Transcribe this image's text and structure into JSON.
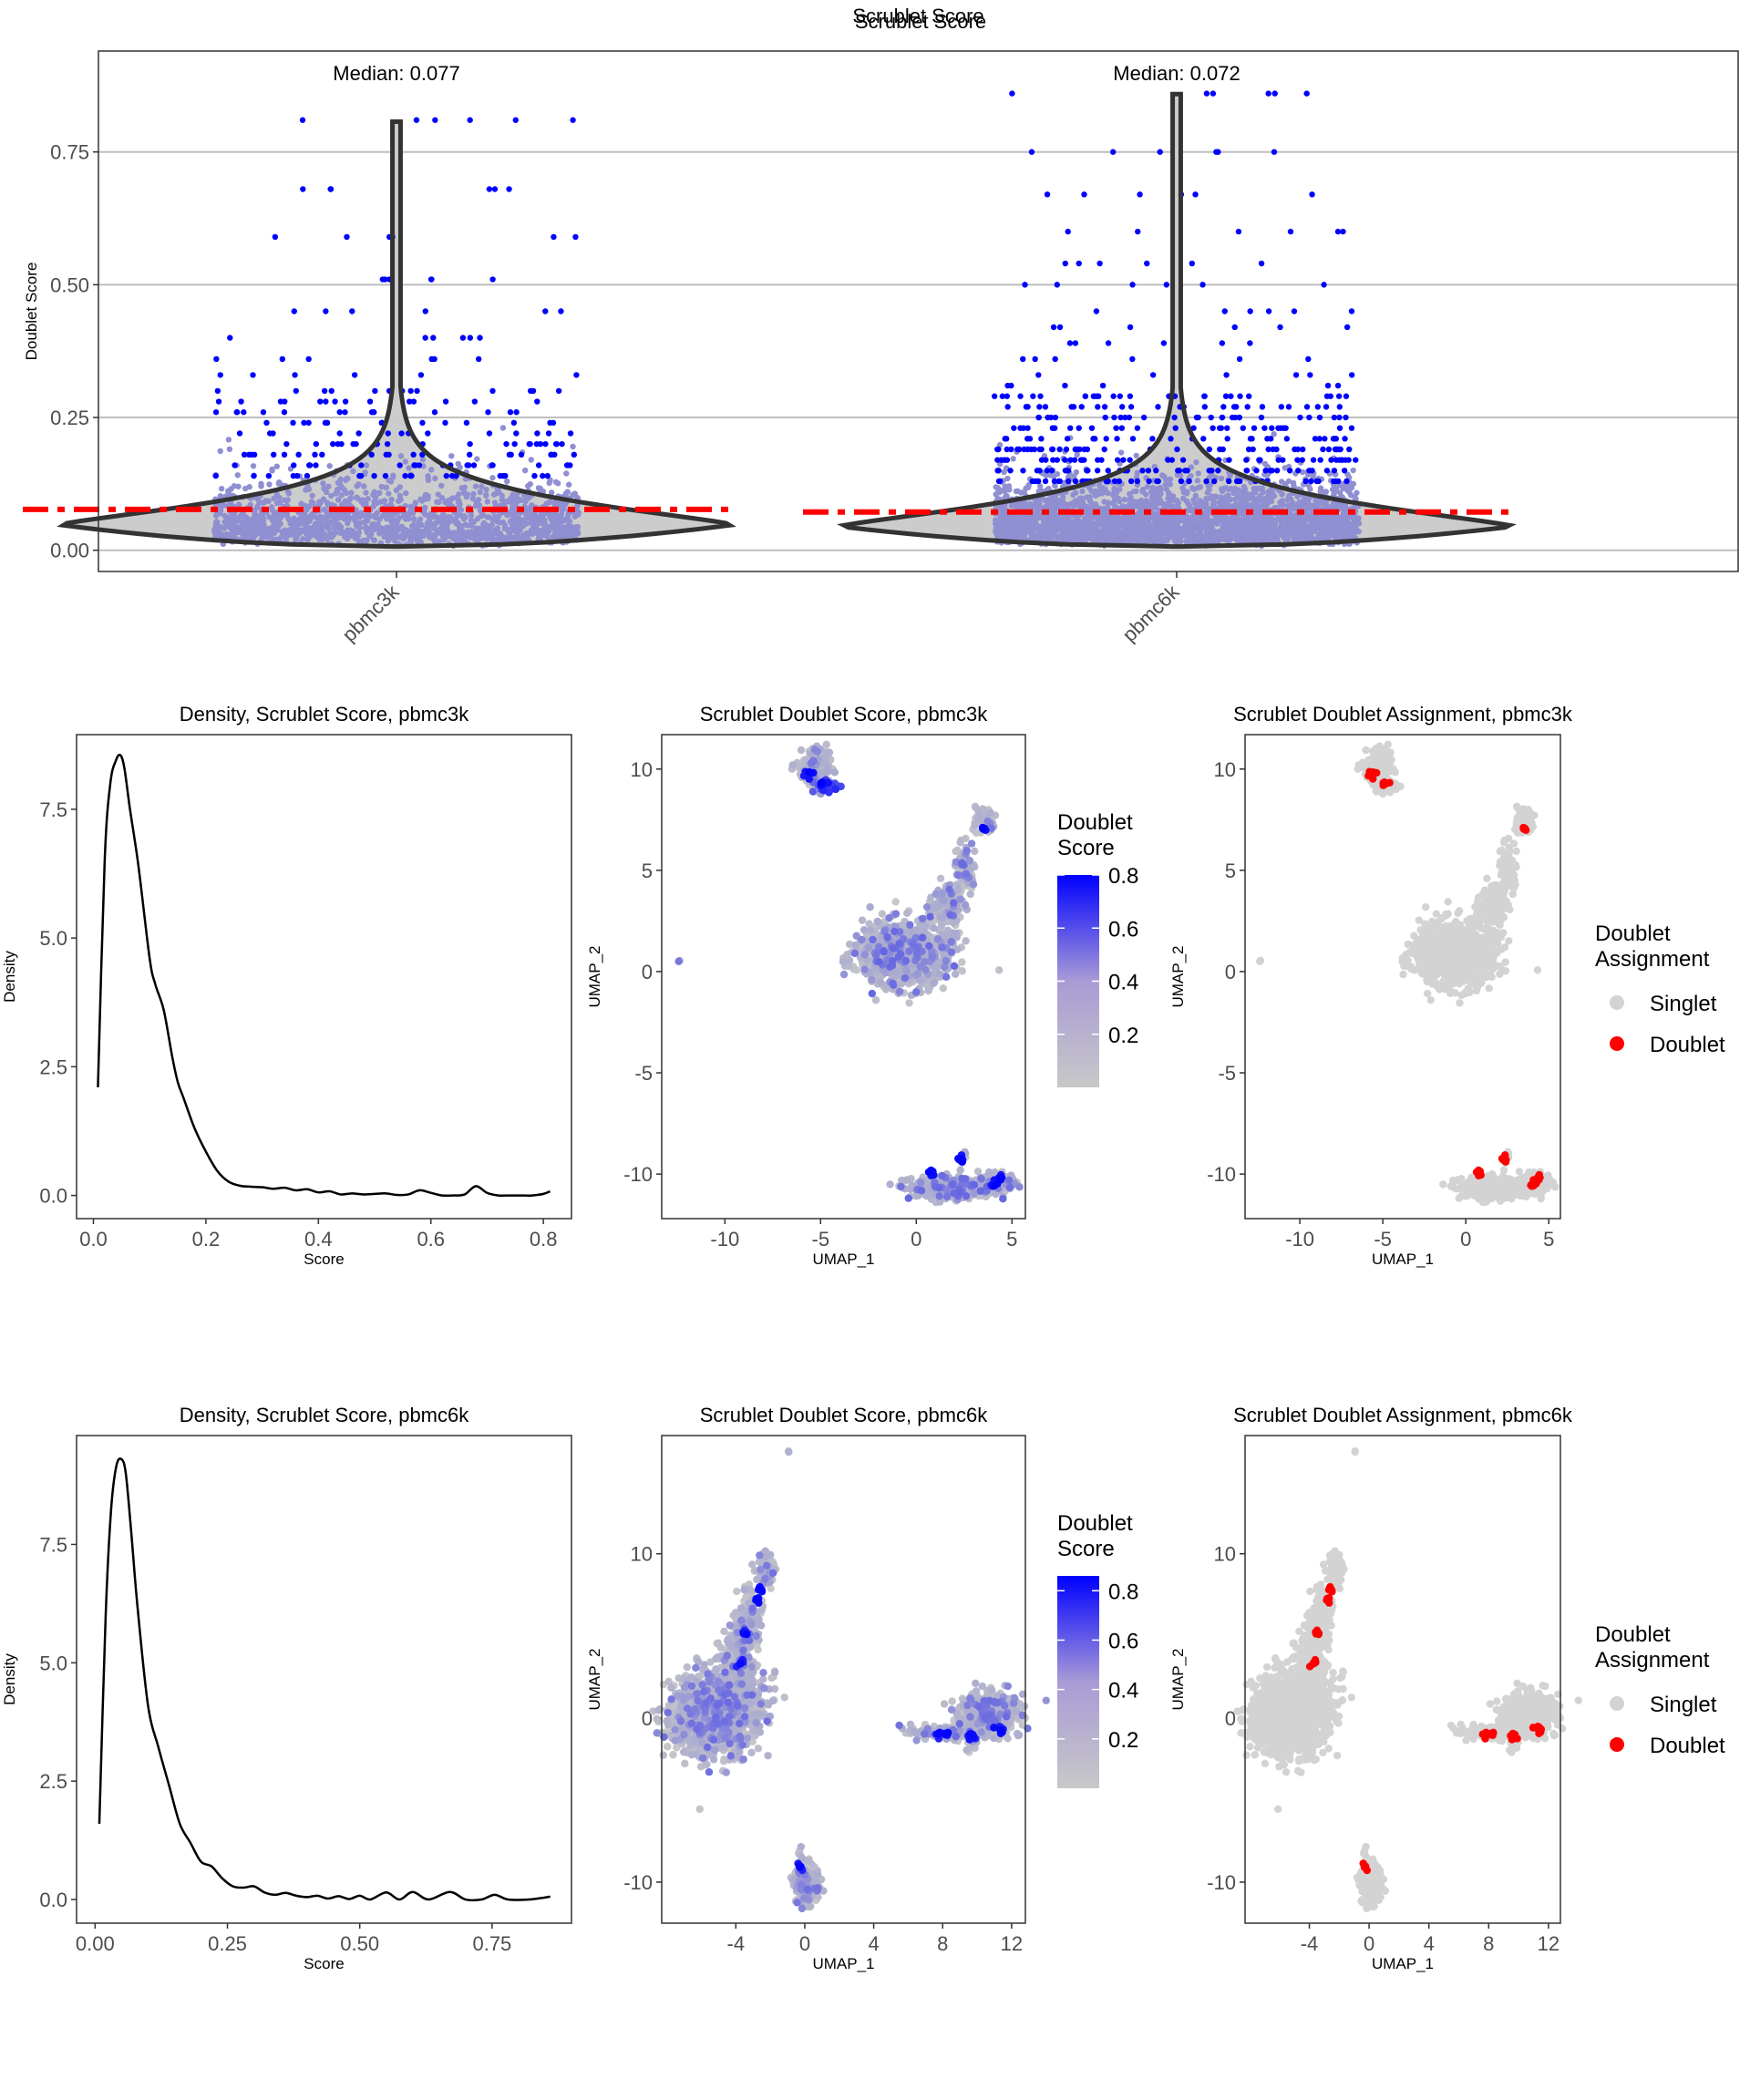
{
  "chart_data": [
    {
      "id": "violin",
      "type": "violin",
      "title": "Scrublet Score",
      "xlabel": "",
      "ylabel": "Doublet Score",
      "ylim": [
        -0.04,
        0.94
      ],
      "yticks": [
        0.0,
        0.25,
        0.5,
        0.75
      ],
      "ytick_labels": [
        "0.00",
        "0.25",
        "0.50",
        "0.75"
      ],
      "categories": [
        "pbmc3k",
        "pbmc6k"
      ],
      "grid": "horizontal",
      "median_line_color": "#FF0000",
      "violin_fill": "#CCCCCC",
      "violin_outline": "#333333",
      "point_color_high": "#0000FF",
      "point_color_low": "#8F8FD1",
      "groups": [
        {
          "name": "pbmc3k",
          "median": 0.077,
          "median_label": "Median: 0.077",
          "max": 0.81,
          "min": 0.007,
          "mode": 0.048,
          "outlier_levels": [
            0.81,
            0.68,
            0.59,
            0.51,
            0.45,
            0.4,
            0.36,
            0.33,
            0.3,
            0.28,
            0.26,
            0.24,
            0.22,
            0.2,
            0.18,
            0.16,
            0.14
          ]
        },
        {
          "name": "pbmc6k",
          "median": 0.072,
          "median_label": "Median: 0.072",
          "max": 0.86,
          "min": 0.007,
          "mode": 0.045,
          "outlier_levels": [
            0.86,
            0.75,
            0.67,
            0.6,
            0.54,
            0.5,
            0.45,
            0.42,
            0.39,
            0.36,
            0.33,
            0.31,
            0.29,
            0.27,
            0.25,
            0.23,
            0.21,
            0.19,
            0.17,
            0.15,
            0.13
          ]
        }
      ]
    },
    {
      "id": "density3k",
      "type": "line",
      "title": "Density, Scrublet Score, pbmc3k",
      "xlabel": "Score",
      "ylabel": "Density",
      "xlim": [
        -0.03,
        0.85
      ],
      "ylim": [
        -0.45,
        8.95
      ],
      "xticks": [
        0.0,
        0.2,
        0.4,
        0.6,
        0.8
      ],
      "xtick_labels": [
        "0.0",
        "0.2",
        "0.4",
        "0.6",
        "0.8"
      ],
      "yticks": [
        0.0,
        2.5,
        5.0,
        7.5
      ],
      "ytick_labels": [
        "0.0",
        "2.5",
        "5.0",
        "7.5"
      ],
      "x": [
        0.008,
        0.02,
        0.03,
        0.04,
        0.048,
        0.055,
        0.065,
        0.08,
        0.1,
        0.11,
        0.125,
        0.14,
        0.15,
        0.16,
        0.18,
        0.2,
        0.22,
        0.24,
        0.26,
        0.28,
        0.3,
        0.32,
        0.34,
        0.36,
        0.38,
        0.4,
        0.42,
        0.44,
        0.46,
        0.48,
        0.5,
        0.52,
        0.54,
        0.56,
        0.58,
        0.6,
        0.62,
        0.64,
        0.66,
        0.68,
        0.7,
        0.72,
        0.74,
        0.76,
        0.78,
        0.8,
        0.812
      ],
      "y": [
        2.1,
        6.5,
        8.0,
        8.45,
        8.55,
        8.3,
        7.5,
        6.4,
        4.6,
        4.1,
        3.6,
        2.7,
        2.2,
        1.9,
        1.3,
        0.85,
        0.48,
        0.27,
        0.19,
        0.17,
        0.16,
        0.13,
        0.15,
        0.1,
        0.12,
        0.06,
        0.08,
        0.02,
        0.04,
        0.02,
        0.03,
        0.04,
        0.01,
        0.02,
        0.1,
        0.05,
        0.0,
        0.0,
        0.02,
        0.18,
        0.05,
        0.0,
        0.0,
        0.0,
        0.0,
        0.03,
        0.08
      ]
    },
    {
      "id": "umap_score3k",
      "type": "scatter",
      "title": "Scrublet Doublet Score, pbmc3k",
      "xlabel": "UMAP_1",
      "ylabel": "UMAP_2",
      "xlim": [
        -13.3,
        5.7
      ],
      "ylim": [
        -12.2,
        11.7
      ],
      "xticks": [
        -10,
        -5,
        0,
        5
      ],
      "xtick_labels": [
        "-10",
        "-5",
        "0",
        "5"
      ],
      "yticks": [
        -10,
        -5,
        0,
        5,
        10
      ],
      "ytick_labels": [
        "-10",
        "-5",
        "0",
        "5",
        "10"
      ],
      "legend": {
        "title": [
          "Doublet",
          "Score"
        ],
        "type": "colorbar",
        "range": [
          0.0,
          0.8
        ],
        "ticks": [
          "0.2",
          "0.4",
          "0.6",
          "0.8"
        ],
        "low_color": "#C8C8C8",
        "high_color": "#0000FF",
        "placement": "right"
      },
      "clusters_approx": [
        {
          "cx": -5.3,
          "cy": 10.1,
          "sx": 0.45,
          "sy": 0.45,
          "n": 160
        },
        {
          "cx": -4.6,
          "cy": 9.1,
          "sx": 0.3,
          "sy": 0.2,
          "n": 25,
          "score": 0.6
        },
        {
          "cx": -0.6,
          "cy": 0.8,
          "sx": 1.15,
          "sy": 0.8,
          "n": 900
        },
        {
          "cx": 1.5,
          "cy": 3.2,
          "sx": 0.4,
          "sy": 0.5,
          "n": 120
        },
        {
          "cx": 2.6,
          "cy": 5.0,
          "sx": 0.3,
          "sy": 0.7,
          "n": 90
        },
        {
          "cx": 3.6,
          "cy": 7.4,
          "sx": 0.25,
          "sy": 0.35,
          "n": 50
        },
        {
          "cx": 1.9,
          "cy": -10.7,
          "sx": 1.1,
          "sy": 0.25,
          "n": 420
        },
        {
          "cx": 4.3,
          "cy": -10.4,
          "sx": 0.45,
          "sy": 0.2,
          "n": 100
        },
        {
          "cx": 2.5,
          "cy": -9.2,
          "sx": 0.08,
          "sy": 0.2,
          "n": 6
        },
        {
          "cx": -12.4,
          "cy": 0.6,
          "sx": 0.05,
          "sy": 0.05,
          "n": 2
        }
      ],
      "doublet_spots": [
        [
          -5.6,
          9.7
        ],
        [
          -4.8,
          9.3
        ],
        [
          3.5,
          7.0
        ],
        [
          0.8,
          -9.9
        ],
        [
          2.4,
          -9.3
        ],
        [
          4.3,
          -10.2
        ],
        [
          4.0,
          -10.5
        ]
      ]
    },
    {
      "id": "umap_assign3k",
      "type": "scatter",
      "title": "Scrublet Doublet Assignment, pbmc3k",
      "xlabel": "UMAP_1",
      "ylabel": "UMAP_2",
      "xlim": [
        -13.3,
        5.7
      ],
      "ylim": [
        -12.2,
        11.7
      ],
      "xticks": [
        -10,
        -5,
        0,
        5
      ],
      "xtick_labels": [
        "-10",
        "-5",
        "0",
        "5"
      ],
      "yticks": [
        -10,
        -5,
        0,
        5,
        10
      ],
      "ytick_labels": [
        "-10",
        "-5",
        "0",
        "5",
        "10"
      ],
      "legend": {
        "title": [
          "Doublet",
          "Assignment"
        ],
        "type": "categorical",
        "items": [
          {
            "label": "Singlet",
            "color": "#D3D3D3"
          },
          {
            "label": "Doublet",
            "color": "#FF0000"
          }
        ],
        "placement": "right"
      },
      "same_points_as": "umap_score3k"
    },
    {
      "id": "density6k",
      "type": "line",
      "title": "Density, Scrublet Score, pbmc6k",
      "xlabel": "Score",
      "ylabel": "Density",
      "xlim": [
        -0.035,
        0.9
      ],
      "ylim": [
        -0.5,
        9.8
      ],
      "xticks": [
        0.0,
        0.25,
        0.5,
        0.75
      ],
      "xtick_labels": [
        "0.00",
        "0.25",
        "0.50",
        "0.75"
      ],
      "yticks": [
        0.0,
        2.5,
        5.0,
        7.5
      ],
      "ytick_labels": [
        "0.0",
        "2.5",
        "5.0",
        "7.5"
      ],
      "x": [
        0.008,
        0.02,
        0.03,
        0.04,
        0.05,
        0.058,
        0.068,
        0.08,
        0.1,
        0.12,
        0.14,
        0.16,
        0.18,
        0.2,
        0.22,
        0.24,
        0.26,
        0.28,
        0.3,
        0.32,
        0.34,
        0.36,
        0.38,
        0.4,
        0.42,
        0.44,
        0.46,
        0.48,
        0.5,
        0.52,
        0.55,
        0.575,
        0.6,
        0.63,
        0.67,
        0.7,
        0.73,
        0.755,
        0.78,
        0.82,
        0.86
      ],
      "y": [
        1.6,
        6.0,
        8.2,
        9.15,
        9.3,
        9.0,
        7.8,
        6.2,
        4.1,
        3.2,
        2.4,
        1.6,
        1.2,
        0.8,
        0.7,
        0.45,
        0.28,
        0.25,
        0.28,
        0.15,
        0.1,
        0.14,
        0.08,
        0.05,
        0.08,
        0.02,
        0.07,
        0.01,
        0.08,
        0.0,
        0.15,
        0.0,
        0.16,
        0.0,
        0.16,
        0.0,
        0.0,
        0.1,
        0.0,
        0.0,
        0.06
      ]
    },
    {
      "id": "umap_score6k",
      "type": "scatter",
      "title": "Scrublet Doublet Score, pbmc6k",
      "xlabel": "UMAP_1",
      "ylabel": "UMAP_2",
      "xlim": [
        -8.3,
        12.8
      ],
      "ylim": [
        -12.5,
        17.2
      ],
      "xticks": [
        -4,
        0,
        4,
        8,
        12
      ],
      "xtick_labels": [
        "-4",
        "0",
        "4",
        "8",
        "12"
      ],
      "yticks": [
        -10,
        0,
        10
      ],
      "ytick_labels": [
        "-10",
        "0",
        "10"
      ],
      "legend": {
        "title": [
          "Doublet",
          "Score"
        ],
        "type": "colorbar",
        "range": [
          0.0,
          0.86
        ],
        "ticks": [
          "0.2",
          "0.4",
          "0.6",
          "0.8"
        ],
        "low_color": "#C8C8C8",
        "high_color": "#0000FF",
        "placement": "right"
      },
      "clusters_approx": [
        {
          "cx": -5.4,
          "cy": 0.2,
          "sx": 1.2,
          "sy": 1.2,
          "n": 1100
        },
        {
          "cx": -4.0,
          "cy": 1.2,
          "sx": 0.9,
          "sy": 0.8,
          "n": 300
        },
        {
          "cx": -3.9,
          "cy": 3.6,
          "sx": 0.45,
          "sy": 1.1,
          "n": 220
        },
        {
          "cx": -3.3,
          "cy": 6.0,
          "sx": 0.35,
          "sy": 0.9,
          "n": 130
        },
        {
          "cx": -2.3,
          "cy": 9.0,
          "sx": 0.3,
          "sy": 0.5,
          "n": 70
        },
        {
          "cx": 10.6,
          "cy": 0.3,
          "sx": 0.9,
          "sy": 0.6,
          "n": 450
        },
        {
          "cx": 8.2,
          "cy": -0.9,
          "sx": 1.0,
          "sy": 0.18,
          "n": 150
        },
        {
          "cx": 9.7,
          "cy": -1.6,
          "sx": 0.12,
          "sy": 0.4,
          "n": 20
        },
        {
          "cx": 0.1,
          "cy": -10.2,
          "sx": 0.35,
          "sy": 0.6,
          "n": 260
        },
        {
          "cx": -0.2,
          "cy": -8.3,
          "sx": 0.1,
          "sy": 0.25,
          "n": 8
        },
        {
          "cx": -0.9,
          "cy": 16.2,
          "sx": 0.05,
          "sy": 0.05,
          "n": 2
        },
        {
          "cx": -5.7,
          "cy": -1.8,
          "sx": 0.05,
          "sy": 0.05,
          "n": 2
        }
      ],
      "doublet_spots": [
        [
          -2.6,
          7.8
        ],
        [
          -2.7,
          7.3
        ],
        [
          -3.5,
          5.2
        ],
        [
          -3.7,
          3.3
        ],
        [
          7.8,
          -1.0
        ],
        [
          8.2,
          -0.9
        ],
        [
          9.6,
          -1.1
        ],
        [
          9.7,
          -1.2
        ],
        [
          11.2,
          -0.6
        ],
        [
          11.4,
          -0.7
        ],
        [
          -0.3,
          -9.1
        ]
      ]
    },
    {
      "id": "umap_assign6k",
      "type": "scatter",
      "title": "Scrublet Doublet Assignment, pbmc6k",
      "xlabel": "UMAP_1",
      "ylabel": "UMAP_2",
      "xlim": [
        -8.3,
        12.8
      ],
      "ylim": [
        -12.5,
        17.2
      ],
      "xticks": [
        -4,
        0,
        4,
        8,
        12
      ],
      "xtick_labels": [
        "-4",
        "0",
        "4",
        "8",
        "12"
      ],
      "yticks": [
        -10,
        0,
        10
      ],
      "ytick_labels": [
        "-10",
        "0",
        "10"
      ],
      "legend": {
        "title": [
          "Doublet",
          "Assignment"
        ],
        "type": "categorical",
        "items": [
          {
            "label": "Singlet",
            "color": "#D3D3D3"
          },
          {
            "label": "Doublet",
            "color": "#FF0000"
          }
        ],
        "placement": "right"
      },
      "same_points_as": "umap_score6k"
    }
  ]
}
